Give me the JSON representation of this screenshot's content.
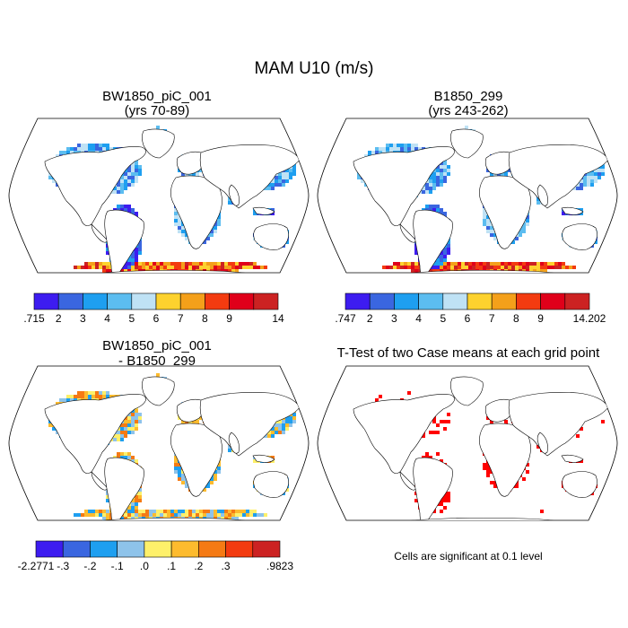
{
  "figure": {
    "title": "MAM U10 (m/s)",
    "note": "Cells are significant at 0.1 level"
  },
  "panels": [
    {
      "id": "case1",
      "title_line1": "BW1850_piC_001",
      "title_line2": "(yrs 70-89)",
      "kind": "mean",
      "colorbar": {
        "colors": [
          "#3d1cf0",
          "#3a66e0",
          "#1e9ff0",
          "#5cbdf0",
          "#bfe2f5",
          "#fdd22e",
          "#f4a01a",
          "#f33b10",
          "#e0001a",
          "#cc2222"
        ],
        "labels": [
          ".715",
          "2",
          "3",
          "4",
          "5",
          "6",
          "7",
          "8",
          "9",
          "14"
        ]
      }
    },
    {
      "id": "case2",
      "title_line1": "B1850_299",
      "title_line2": "(yrs 243-262)",
      "kind": "mean",
      "colorbar": {
        "colors": [
          "#3d1cf0",
          "#3a66e0",
          "#1e9ff0",
          "#5cbdf0",
          "#bfe2f5",
          "#fdd22e",
          "#f4a01a",
          "#f33b10",
          "#e0001a",
          "#cc2222"
        ],
        "labels": [
          ".747",
          "2",
          "3",
          "4",
          "5",
          "6",
          "7",
          "8",
          "9",
          "14.202"
        ]
      }
    },
    {
      "id": "diff",
      "title_line1": "BW1850_piC_001",
      "title_line2": "- B1850_299",
      "kind": "diff",
      "colorbar": {
        "colors": [
          "#3d1cf0",
          "#3a66e0",
          "#1e9ff0",
          "#8ec3ea",
          "#fef06a",
          "#fdbb2e",
          "#f57a14",
          "#f33b10",
          "#cc2222"
        ],
        "labels": [
          "-2.2771",
          "-.3",
          "-.2",
          "-.1",
          ".0",
          ".1",
          ".2",
          ".3",
          ".9823"
        ]
      }
    },
    {
      "id": "ttest",
      "title_line1": "T-Test of two Case means at each grid point",
      "title_line2": "",
      "kind": "ttest",
      "significant_color": "#ff0000"
    }
  ]
}
